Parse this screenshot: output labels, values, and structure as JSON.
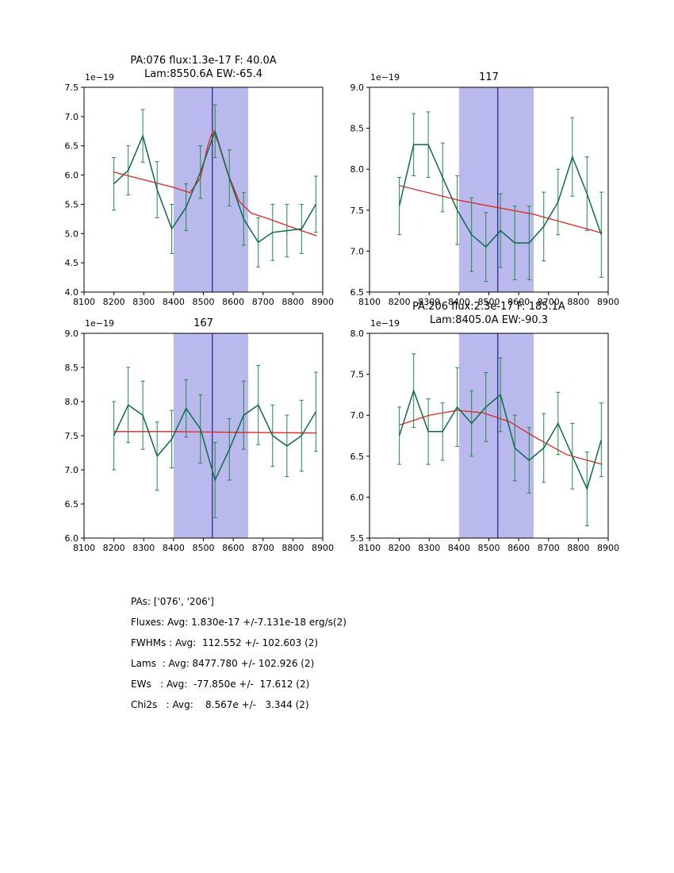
{
  "colors": {
    "background": "#ffffff",
    "band": "#b9b9ee",
    "vline": "#000080",
    "fit": "#e62222",
    "series": "#0e6b4a",
    "errorbar": "#1f8b3e",
    "axes": "#000000"
  },
  "chart_data": [
    {
      "type": "line",
      "title_lines": [
        "PA:076 flux:1.3e-17 F: 40.0A",
        "Lam:8550.6A EW:-65.4"
      ],
      "offset_label": "1e−19",
      "xlim": [
        8100,
        8900
      ],
      "ylim": [
        4.0,
        7.5
      ],
      "xticks": [
        8100,
        8200,
        8300,
        8400,
        8500,
        8600,
        8700,
        8800,
        8900
      ],
      "yticks": [
        4.0,
        4.5,
        5.0,
        5.5,
        6.0,
        6.5,
        7.0,
        7.5
      ],
      "band": [
        8400,
        8650
      ],
      "vline": 8530,
      "x": [
        8200,
        8248,
        8297,
        8345,
        8394,
        8442,
        8490,
        8539,
        8587,
        8635,
        8684,
        8732,
        8780,
        8829,
        8877
      ],
      "y": [
        5.85,
        6.08,
        6.67,
        5.75,
        5.08,
        5.45,
        6.05,
        6.75,
        5.95,
        5.25,
        4.85,
        5.02,
        5.05,
        5.08,
        5.5
      ],
      "yerr": [
        0.45,
        0.42,
        0.45,
        0.48,
        0.42,
        0.4,
        0.45,
        0.45,
        0.48,
        0.45,
        0.42,
        0.48,
        0.45,
        0.42,
        0.48
      ],
      "fit_x": [
        8200,
        8300,
        8400,
        8455,
        8490,
        8515,
        8532,
        8550,
        8580,
        8620,
        8660,
        8720,
        8800,
        8880
      ],
      "fit_y": [
        6.05,
        5.92,
        5.79,
        5.7,
        5.95,
        6.5,
        6.76,
        6.55,
        6.05,
        5.55,
        5.35,
        5.25,
        5.1,
        4.96
      ]
    },
    {
      "type": "line",
      "title_lines": [
        "117"
      ],
      "offset_label": "1e−19",
      "xlim": [
        8100,
        8900
      ],
      "ylim": [
        6.5,
        9.0
      ],
      "xticks": [
        8100,
        8200,
        8300,
        8400,
        8500,
        8600,
        8700,
        8800,
        8900
      ],
      "yticks": [
        6.5,
        7.0,
        7.5,
        8.0,
        8.5,
        9.0
      ],
      "band": [
        8400,
        8650
      ],
      "vline": 8530,
      "x": [
        8200,
        8248,
        8297,
        8345,
        8394,
        8442,
        8490,
        8539,
        8587,
        8635,
        8684,
        8732,
        8780,
        8829,
        8877
      ],
      "y": [
        7.55,
        8.3,
        8.3,
        7.9,
        7.5,
        7.2,
        7.05,
        7.25,
        7.1,
        7.1,
        7.3,
        7.6,
        8.15,
        7.7,
        7.2
      ],
      "yerr": [
        0.35,
        0.38,
        0.4,
        0.42,
        0.42,
        0.45,
        0.42,
        0.45,
        0.45,
        0.45,
        0.42,
        0.4,
        0.48,
        0.45,
        0.52
      ],
      "fit_x": [
        8200,
        8400,
        8532,
        8650,
        8880
      ],
      "fit_y": [
        7.8,
        7.62,
        7.53,
        7.45,
        7.22
      ]
    },
    {
      "type": "line",
      "title_lines": [
        "167"
      ],
      "offset_label": "1e−19",
      "xlim": [
        8100,
        8900
      ],
      "ylim": [
        6.0,
        9.0
      ],
      "xticks": [
        8100,
        8200,
        8300,
        8400,
        8500,
        8600,
        8700,
        8800,
        8900
      ],
      "yticks": [
        6.0,
        6.5,
        7.0,
        7.5,
        8.0,
        8.5,
        9.0
      ],
      "band": [
        8400,
        8650
      ],
      "vline": 8530,
      "x": [
        8200,
        8248,
        8297,
        8345,
        8394,
        8442,
        8490,
        8539,
        8587,
        8635,
        8684,
        8732,
        8780,
        8829,
        8877
      ],
      "y": [
        7.5,
        7.95,
        7.8,
        7.2,
        7.45,
        7.9,
        7.6,
        6.85,
        7.3,
        7.8,
        7.95,
        7.5,
        7.35,
        7.5,
        7.85
      ],
      "yerr": [
        0.5,
        0.55,
        0.5,
        0.5,
        0.42,
        0.42,
        0.5,
        0.55,
        0.45,
        0.5,
        0.58,
        0.45,
        0.45,
        0.52,
        0.58
      ],
      "fit_x": [
        8200,
        8400,
        8600,
        8880
      ],
      "fit_y": [
        7.56,
        7.56,
        7.55,
        7.54
      ]
    },
    {
      "type": "line",
      "title_lines": [
        "PA:206 flux:2.3e-17 F: 185.1A",
        "Lam:8405.0A EW:-90.3"
      ],
      "offset_label": "1e−19",
      "xlim": [
        8100,
        8900
      ],
      "ylim": [
        5.5,
        8.0
      ],
      "xticks": [
        8100,
        8200,
        8300,
        8400,
        8500,
        8600,
        8700,
        8800,
        8900
      ],
      "yticks": [
        5.5,
        6.0,
        6.5,
        7.0,
        7.5,
        8.0
      ],
      "band": [
        8400,
        8650
      ],
      "vline": 8530,
      "x": [
        8200,
        8248,
        8297,
        8345,
        8394,
        8442,
        8490,
        8539,
        8587,
        8635,
        8684,
        8732,
        8780,
        8829,
        8877
      ],
      "y": [
        6.75,
        7.3,
        6.8,
        6.8,
        7.1,
        6.9,
        7.1,
        7.25,
        6.6,
        6.45,
        6.6,
        6.9,
        6.5,
        6.1,
        6.7
      ],
      "yerr": [
        0.35,
        0.45,
        0.4,
        0.35,
        0.48,
        0.4,
        0.42,
        0.45,
        0.4,
        0.4,
        0.42,
        0.38,
        0.4,
        0.45,
        0.45
      ],
      "fit_x": [
        8200,
        8300,
        8394,
        8480,
        8570,
        8660,
        8760,
        8880
      ],
      "fit_y": [
        6.88,
        7.0,
        7.06,
        7.03,
        6.92,
        6.72,
        6.52,
        6.4
      ]
    }
  ],
  "stats": {
    "lines": [
      "PAs: ['076', '206']",
      "Fluxes: Avg: 1.830e-17 +/-7.131e-18 erg/s(2)",
      "FWHMs : Avg:  112.552 +/- 102.603 (2)",
      "Lams  : Avg: 8477.780 +/- 102.926 (2)",
      "EWs   : Avg:  -77.850e +/-  17.612 (2)",
      "Chi2s   : Avg:    8.567e +/-   3.344 (2)"
    ]
  }
}
